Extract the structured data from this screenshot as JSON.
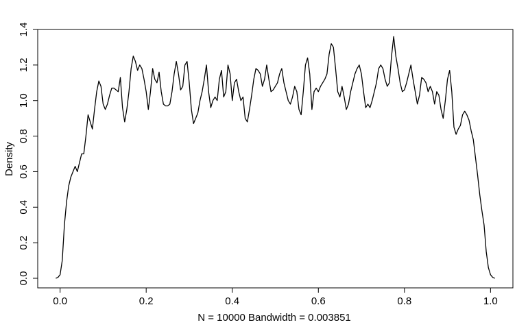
{
  "chart_data": {
    "type": "line",
    "xlabel": "N = 10000   Bandwidth = 0.003851",
    "ylabel": "Density",
    "xlim": [
      -0.052,
      1.052
    ],
    "ylim": [
      -0.054,
      1.4
    ],
    "xticks": [
      {
        "value": 0,
        "label": "0.0"
      },
      0.2,
      0.4,
      0.6,
      0.8,
      {
        "value": 1,
        "label": "1.0"
      }
    ],
    "yticks": [
      {
        "value": 0,
        "label": "0.0"
      },
      0.2,
      0.4,
      0.6,
      0.8,
      {
        "value": 1,
        "label": "1.0"
      },
      1.2,
      1.4
    ],
    "x": [
      -0.01,
      -0.005,
      0,
      0.005,
      0.01,
      0.015,
      0.02,
      0.025,
      0.03,
      0.035,
      0.04,
      0.045,
      0.05,
      0.055,
      0.06,
      0.065,
      0.07,
      0.075,
      0.08,
      0.085,
      0.09,
      0.095,
      0.1,
      0.105,
      0.11,
      0.115,
      0.12,
      0.125,
      0.13,
      0.135,
      0.14,
      0.145,
      0.15,
      0.155,
      0.16,
      0.165,
      0.17,
      0.175,
      0.18,
      0.185,
      0.19,
      0.195,
      0.2,
      0.205,
      0.21,
      0.215,
      0.22,
      0.225,
      0.23,
      0.235,
      0.24,
      0.245,
      0.25,
      0.255,
      0.26,
      0.265,
      0.27,
      0.275,
      0.28,
      0.285,
      0.29,
      0.295,
      0.3,
      0.305,
      0.31,
      0.315,
      0.32,
      0.325,
      0.33,
      0.335,
      0.34,
      0.345,
      0.35,
      0.355,
      0.36,
      0.365,
      0.37,
      0.375,
      0.38,
      0.385,
      0.39,
      0.395,
      0.4,
      0.405,
      0.41,
      0.415,
      0.42,
      0.425,
      0.43,
      0.435,
      0.44,
      0.445,
      0.45,
      0.455,
      0.46,
      0.465,
      0.47,
      0.475,
      0.48,
      0.485,
      0.49,
      0.495,
      0.5,
      0.505,
      0.51,
      0.515,
      0.52,
      0.525,
      0.53,
      0.535,
      0.54,
      0.545,
      0.55,
      0.555,
      0.56,
      0.565,
      0.57,
      0.575,
      0.58,
      0.585,
      0.59,
      0.595,
      0.6,
      0.605,
      0.61,
      0.615,
      0.62,
      0.625,
      0.63,
      0.635,
      0.64,
      0.645,
      0.65,
      0.655,
      0.66,
      0.665,
      0.67,
      0.675,
      0.68,
      0.685,
      0.69,
      0.695,
      0.7,
      0.705,
      0.71,
      0.715,
      0.72,
      0.725,
      0.73,
      0.735,
      0.74,
      0.745,
      0.75,
      0.755,
      0.76,
      0.765,
      0.77,
      0.775,
      0.78,
      0.785,
      0.79,
      0.795,
      0.8,
      0.805,
      0.81,
      0.815,
      0.82,
      0.825,
      0.83,
      0.835,
      0.84,
      0.845,
      0.85,
      0.855,
      0.86,
      0.865,
      0.87,
      0.875,
      0.88,
      0.885,
      0.89,
      0.895,
      0.9,
      0.905,
      0.91,
      0.915,
      0.92,
      0.925,
      0.93,
      0.935,
      0.94,
      0.945,
      0.95,
      0.955,
      0.96,
      0.965,
      0.97,
      0.975,
      0.98,
      0.985,
      0.99,
      0.995,
      1.0,
      1.005,
      1.01
    ],
    "values": [
      0,
      0.005,
      0.02,
      0.1,
      0.3,
      0.43,
      0.52,
      0.57,
      0.6,
      0.63,
      0.6,
      0.65,
      0.7,
      0.7,
      0.8,
      0.92,
      0.88,
      0.84,
      0.95,
      1.05,
      1.11,
      1.08,
      0.98,
      0.95,
      0.98,
      1.03,
      1.07,
      1.07,
      1.06,
      1.05,
      1.13,
      0.96,
      0.88,
      0.95,
      1.05,
      1.18,
      1.25,
      1.22,
      1.17,
      1.2,
      1.18,
      1.12,
      1.05,
      0.95,
      1.05,
      1.18,
      1.12,
      1.1,
      1.16,
      1.05,
      0.98,
      0.97,
      0.97,
      0.98,
      1.05,
      1.15,
      1.22,
      1.15,
      1.06,
      1.08,
      1.2,
      1.22,
      1.1,
      0.95,
      0.87,
      0.9,
      0.93,
      1.0,
      1.05,
      1.12,
      1.2,
      1.05,
      0.96,
      1.0,
      1.02,
      1.0,
      1.12,
      1.17,
      1.02,
      1.05,
      1.2,
      1.15,
      1.0,
      1.1,
      1.12,
      1.05,
      1.0,
      1.02,
      0.9,
      0.88,
      0.95,
      1.03,
      1.12,
      1.18,
      1.17,
      1.15,
      1.08,
      1.12,
      1.2,
      1.12,
      1.05,
      1.06,
      1.08,
      1.1,
      1.15,
      1.18,
      1.1,
      1.05,
      1.0,
      0.98,
      1.02,
      1.08,
      1.05,
      0.95,
      0.92,
      1.05,
      1.2,
      1.24,
      1.15,
      0.95,
      1.05,
      1.07,
      1.05,
      1.08,
      1.1,
      1.12,
      1.15,
      1.26,
      1.32,
      1.3,
      1.18,
      1.05,
      1.02,
      1.08,
      1.02,
      0.95,
      0.98,
      1.05,
      1.1,
      1.15,
      1.18,
      1.2,
      1.15,
      1.05,
      0.96,
      0.98,
      0.96,
      1.0,
      1.05,
      1.1,
      1.18,
      1.2,
      1.18,
      1.12,
      1.08,
      1.1,
      1.25,
      1.36,
      1.25,
      1.18,
      1.1,
      1.05,
      1.06,
      1.1,
      1.15,
      1.2,
      1.12,
      1.05,
      0.98,
      1.03,
      1.13,
      1.12,
      1.1,
      1.05,
      1.08,
      1.05,
      0.98,
      1.05,
      1.03,
      0.95,
      0.9,
      1.0,
      1.12,
      1.17,
      1.05,
      0.85,
      0.81,
      0.84,
      0.86,
      0.92,
      0.94,
      0.92,
      0.89,
      0.83,
      0.78,
      0.68,
      0.58,
      0.47,
      0.38,
      0.3,
      0.15,
      0.06,
      0.02,
      0.005,
      0
    ],
    "color": "#000000"
  }
}
